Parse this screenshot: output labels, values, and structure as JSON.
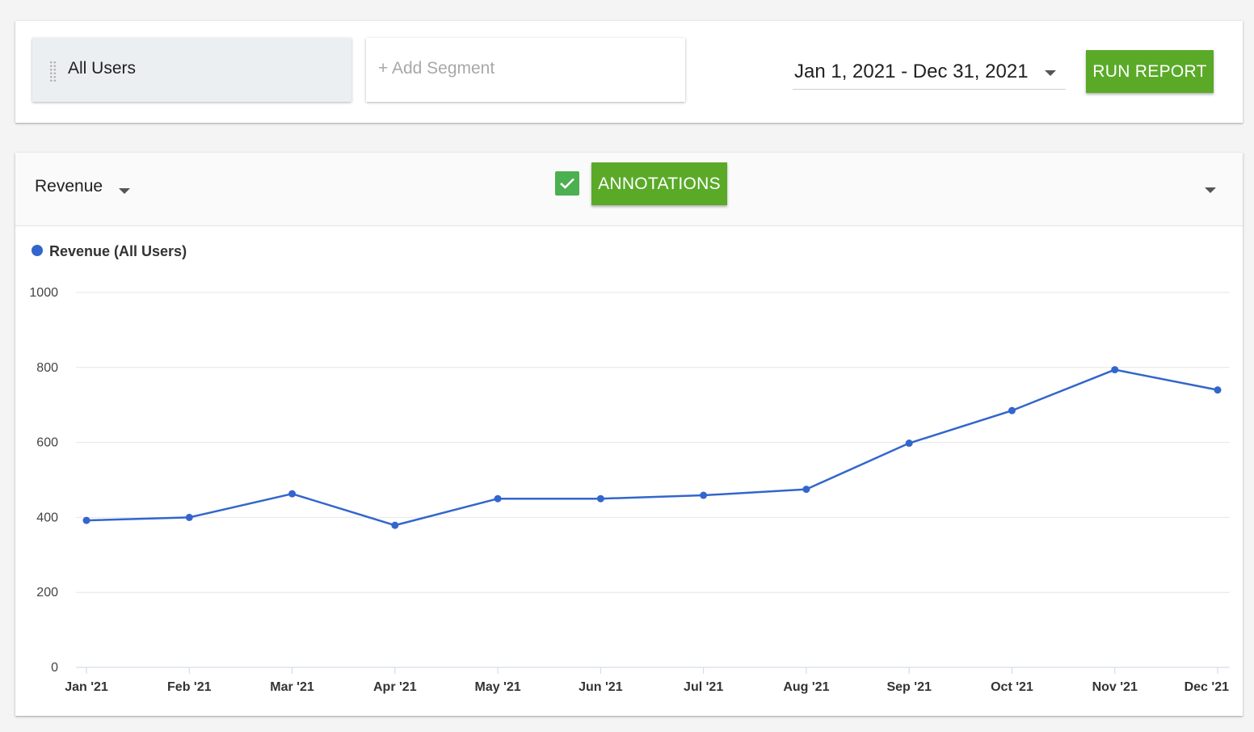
{
  "segments": {
    "all_users": "All Users",
    "add_segment": "+ Add Segment"
  },
  "date_range": "Jan 1, 2021 - Dec 31, 2021",
  "run_report": "RUN REPORT",
  "metric": "Revenue",
  "annotations": {
    "label": "ANNOTATIONS",
    "checked": true
  },
  "colors": {
    "accent": "#5aaa28",
    "line": "#3366cc",
    "checkbox": "#4caf50"
  },
  "chart_data": {
    "type": "line",
    "categories": [
      "Jan '21",
      "Feb '21",
      "Mar '21",
      "Apr '21",
      "May '21",
      "Jun '21",
      "Jul '21",
      "Aug '21",
      "Sep '21",
      "Oct '21",
      "Nov '21",
      "Dec '21"
    ],
    "series": [
      {
        "name": "Revenue (All Users)",
        "values": [
          392,
          400,
          463,
          379,
          450,
          450,
          459,
          475,
          598,
          685,
          794,
          740
        ]
      }
    ],
    "ylim": [
      0,
      1000
    ],
    "yticks": [
      0,
      200,
      400,
      600,
      800,
      1000
    ],
    "grid": true,
    "legend": "top-left"
  }
}
